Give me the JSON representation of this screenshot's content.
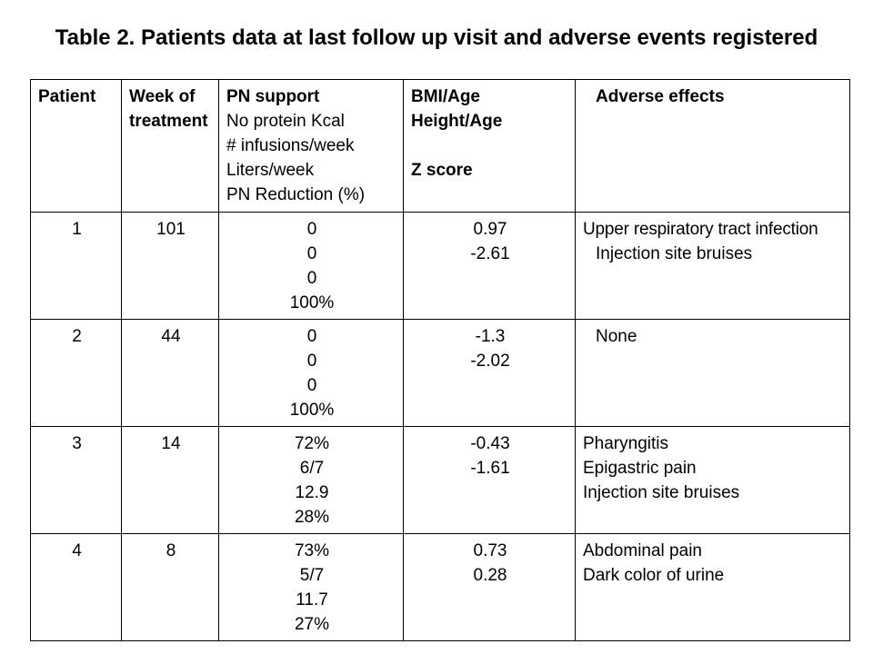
{
  "title": "Table 2. Patients data at last follow up visit and adverse events registered",
  "header": {
    "patient": "Patient",
    "week": [
      "Week of",
      "treatment"
    ],
    "pn_support_title": "PN support",
    "pn_support_lines": [
      "No protein Kcal",
      "# infusions/week",
      "Liters/week",
      "PN Reduction (%)"
    ],
    "bmi": [
      "BMI/Age",
      "Height/Age"
    ],
    "z_score": "Z score",
    "adverse": "Adverse effects"
  },
  "rows": [
    {
      "patient": "1",
      "week": "101",
      "pn": [
        "0",
        "0",
        "0",
        "100%"
      ],
      "z": [
        "0.97",
        "-2.61"
      ],
      "adverse": [
        "Upper respiratory tract  infection",
        "Injection site bruises"
      ]
    },
    {
      "patient": "2",
      "week": "44",
      "pn": [
        "0",
        "0",
        "0",
        "100%"
      ],
      "z": [
        "-1.3",
        "-2.02"
      ],
      "adverse": [
        "None"
      ]
    },
    {
      "patient": "3",
      "week": "14",
      "pn": [
        "72%",
        "6/7",
        "12.9",
        "28%"
      ],
      "z": [
        "-0.43",
        "-1.61"
      ],
      "adverse": [
        "Pharyngitis",
        "Epigastric pain",
        "Injection site bruises"
      ]
    },
    {
      "patient": "4",
      "week": "8",
      "pn": [
        "73%",
        "5/7",
        "11.7",
        "27%"
      ],
      "z": [
        "0.73",
        "0.28"
      ],
      "adverse": [
        "Abdominal pain",
        "Dark color of urine"
      ]
    }
  ]
}
